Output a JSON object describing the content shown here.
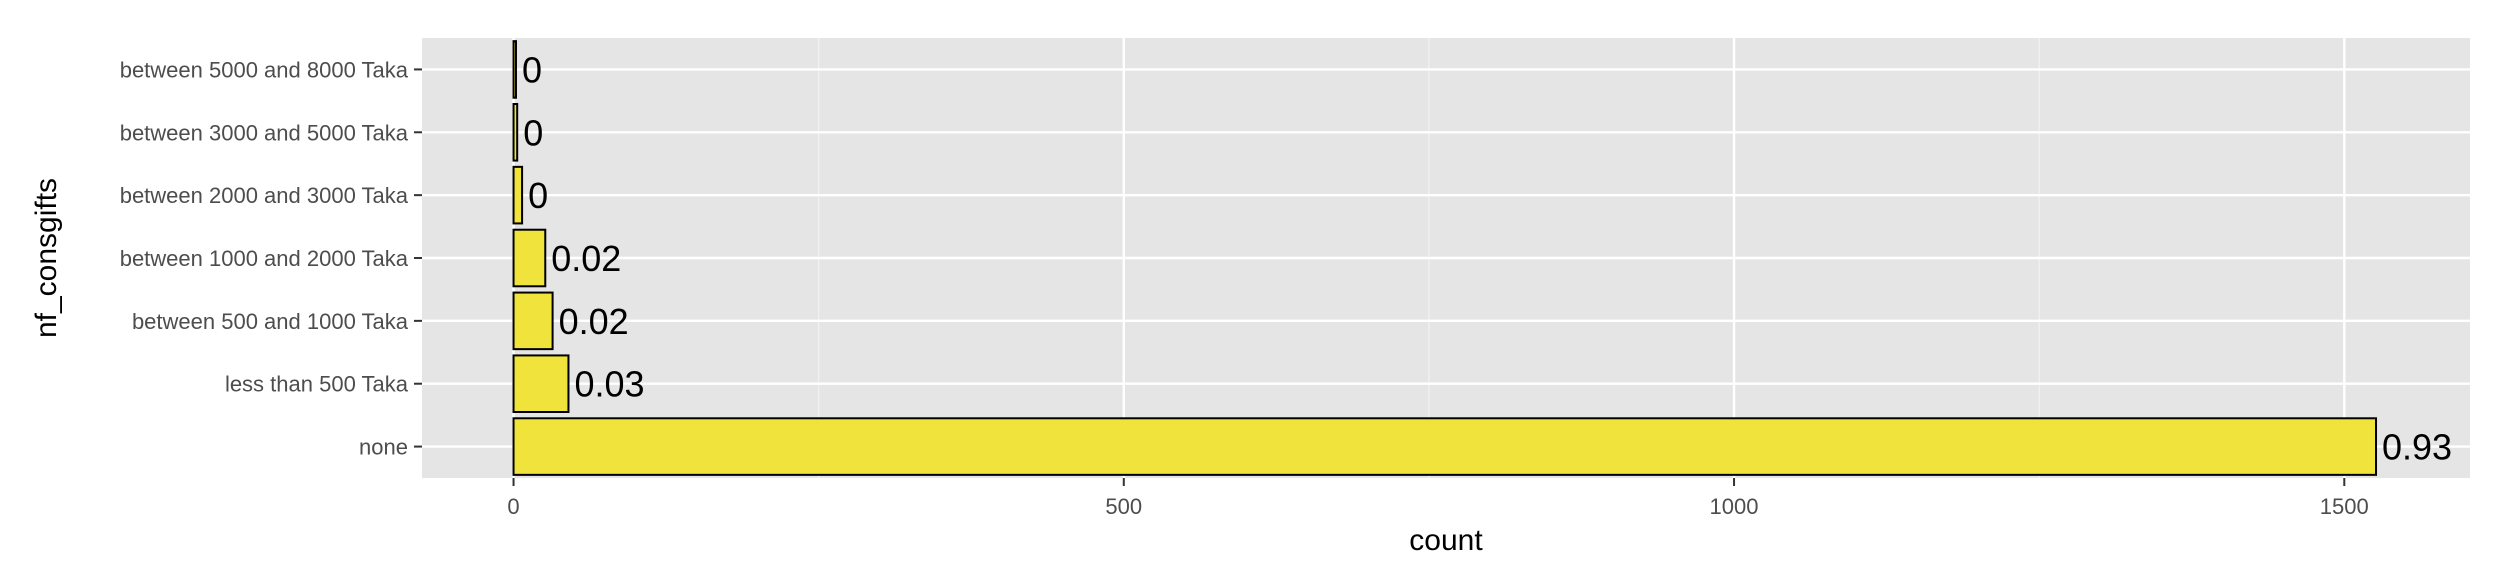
{
  "chart_data": {
    "type": "bar",
    "orientation": "horizontal",
    "title": "",
    "xlabel": "count",
    "ylabel": "nf_consgifts",
    "categories": [
      "none",
      "less than 500 Taka",
      "between 500 and 1000 Taka",
      "between 1000 and 2000 Taka",
      "between 2000 and 3000 Taka",
      "between 3000 and 5000 Taka",
      "between 5000 and 8000 Taka"
    ],
    "values": [
      1526,
      45,
      32,
      26,
      7,
      3,
      2
    ],
    "data_labels": [
      "0.93",
      "0.03",
      "0.02",
      "0.02",
      "0",
      "0",
      "0"
    ],
    "xticks": [
      0,
      500,
      1000,
      1500
    ],
    "xtick_labels": [
      "0",
      "500",
      "1000",
      "1500"
    ],
    "xlim": [
      -75,
      1603
    ],
    "grid": true,
    "legend": "none",
    "colors": {
      "bar_fill": "#F0E33B",
      "bar_stroke": "#000000",
      "panel_background": "#E5E5E5",
      "grid_major": "#FFFFFF",
      "grid_minor": "#F2F2F2"
    }
  }
}
